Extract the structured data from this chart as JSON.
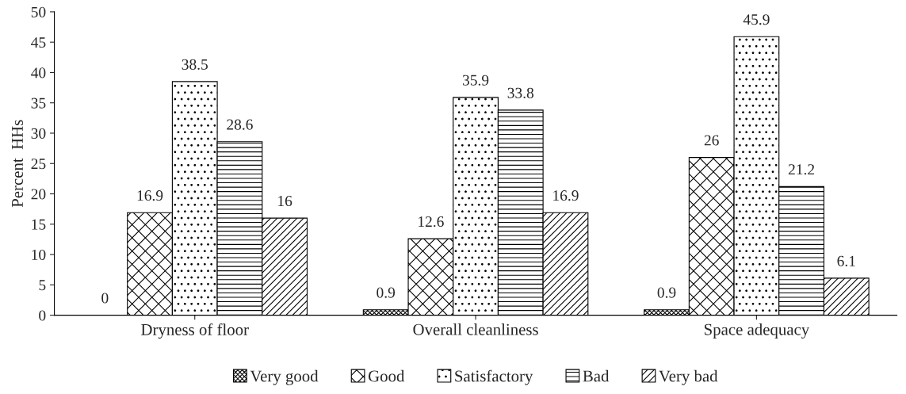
{
  "chart_data": {
    "type": "bar",
    "ylabel": "Percent  HHs",
    "categories": [
      "Dryness of floor",
      "Overall cleanliness",
      "Space adequacy"
    ],
    "series": [
      {
        "name": "Very good",
        "color": "#000000",
        "values": [
          0,
          0.9,
          0.9
        ]
      },
      {
        "name": "Good",
        "color": "#000000",
        "values": [
          16.9,
          12.6,
          26
        ]
      },
      {
        "name": "Satisfactory",
        "color": "#000000",
        "values": [
          38.5,
          35.9,
          45.9
        ]
      },
      {
        "name": "Bad",
        "color": "#000000",
        "values": [
          28.6,
          33.8,
          21.2
        ]
      },
      {
        "name": "Very bad",
        "color": "#000000",
        "values": [
          16,
          16.9,
          6.1
        ]
      }
    ],
    "ylim": [
      0,
      50
    ],
    "yticks": [
      0,
      5,
      10,
      15,
      20,
      25,
      30,
      35,
      40,
      45,
      50
    ],
    "grid": false,
    "legend": "bottom",
    "data_labels": true
  }
}
